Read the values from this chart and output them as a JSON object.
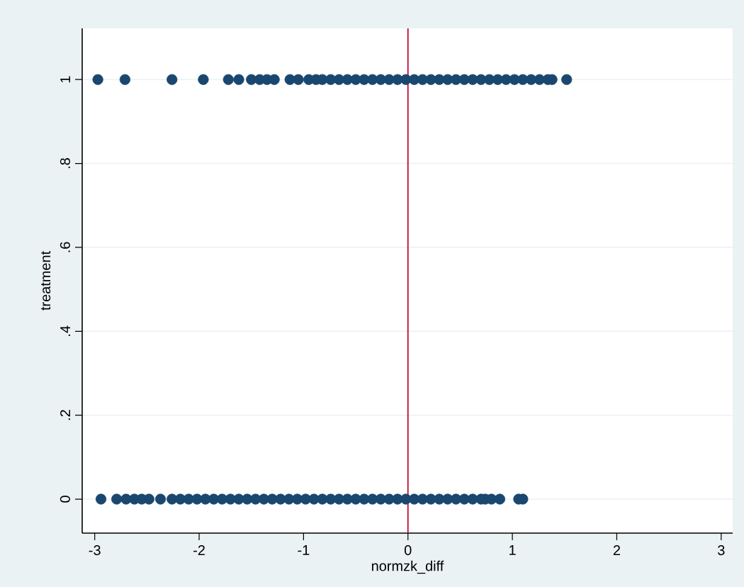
{
  "chart_data": {
    "type": "scatter",
    "xlabel": "normzk_diff",
    "ylabel": "treatment",
    "xlim": [
      -3.12,
      3.11
    ],
    "ylim": [
      -0.081,
      1.122
    ],
    "xticks": [
      -3,
      -2,
      -1,
      0,
      1,
      2,
      3
    ],
    "yticks": [
      0,
      {
        "value": 0.2,
        "label": ".2"
      },
      {
        "value": 0.4,
        "label": ".4"
      },
      {
        "value": 0.6,
        "label": ".6"
      },
      {
        "value": 0.8,
        "label": ".8"
      },
      1
    ],
    "grid": "y",
    "marker": "circle",
    "ref_lines": [
      {
        "axis": "x",
        "value": 0,
        "color": "#c10534"
      }
    ],
    "series": [
      {
        "color": "#1a476f",
        "x": [
          -2.97,
          -2.71,
          -2.26,
          -1.96,
          -1.72,
          -1.62,
          -1.5,
          -1.42,
          -1.35,
          -1.28,
          -1.13,
          -1.05,
          -0.95,
          -0.88,
          -0.82,
          -0.74,
          -0.66,
          -0.58,
          -0.5,
          -0.42,
          -0.34,
          -0.26,
          -0.18,
          -0.1,
          -0.02,
          0.06,
          0.14,
          0.22,
          0.3,
          0.38,
          0.46,
          0.54,
          0.62,
          0.7,
          0.78,
          0.86,
          0.94,
          1.02,
          1.1,
          1.18,
          1.26,
          1.34,
          1.38,
          1.52
        ],
        "values": [
          1,
          1,
          1,
          1,
          1,
          1,
          1,
          1,
          1,
          1,
          1,
          1,
          1,
          1,
          1,
          1,
          1,
          1,
          1,
          1,
          1,
          1,
          1,
          1,
          1,
          1,
          1,
          1,
          1,
          1,
          1,
          1,
          1,
          1,
          1,
          1,
          1,
          1,
          1,
          1,
          1,
          1,
          1,
          1
        ]
      },
      {
        "color": "#1a476f",
        "x": [
          -2.94,
          -2.79,
          -2.7,
          -2.62,
          -2.55,
          -2.48,
          -2.37,
          -2.26,
          -2.18,
          -2.1,
          -2.02,
          -1.94,
          -1.86,
          -1.78,
          -1.7,
          -1.62,
          -1.54,
          -1.46,
          -1.38,
          -1.3,
          -1.22,
          -1.14,
          -1.06,
          -0.98,
          -0.9,
          -0.82,
          -0.74,
          -0.66,
          -0.58,
          -0.5,
          -0.42,
          -0.34,
          -0.26,
          -0.18,
          -0.1,
          -0.02,
          0.06,
          0.14,
          0.22,
          0.3,
          0.38,
          0.46,
          0.54,
          0.62,
          0.7,
          0.74,
          0.8,
          0.88,
          1.06,
          1.1
        ],
        "values": [
          0,
          0,
          0,
          0,
          0,
          0,
          0,
          0,
          0,
          0,
          0,
          0,
          0,
          0,
          0,
          0,
          0,
          0,
          0,
          0,
          0,
          0,
          0,
          0,
          0,
          0,
          0,
          0,
          0,
          0,
          0,
          0,
          0,
          0,
          0,
          0,
          0,
          0,
          0,
          0,
          0,
          0,
          0,
          0,
          0,
          0,
          0,
          0,
          0,
          0
        ]
      }
    ]
  }
}
